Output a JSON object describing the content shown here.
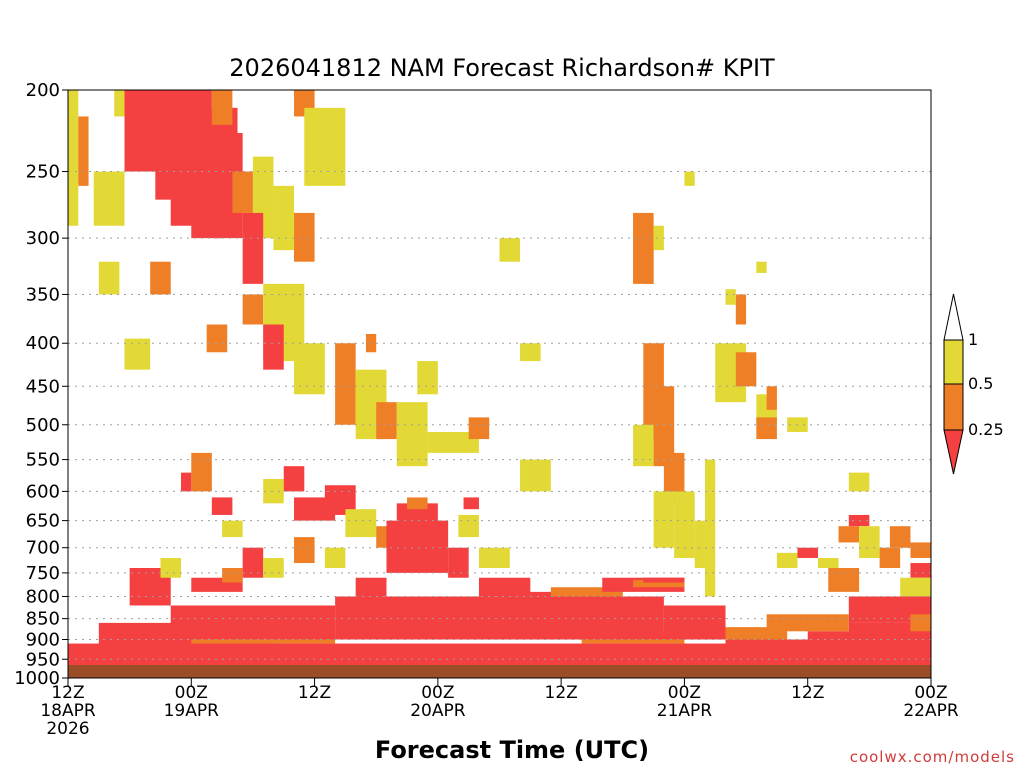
{
  "chart_data": {
    "type": "heatmap",
    "title": "2026041812 NAM Forecast Richardson# KPIT",
    "xlabel": "Forecast Time (UTC)",
    "ylabel": "",
    "y_axis": {
      "scale": "log",
      "inverted": true,
      "range": [
        200,
        1000
      ]
    },
    "y_ticks": [
      200,
      250,
      300,
      350,
      400,
      450,
      500,
      550,
      600,
      650,
      700,
      750,
      800,
      850,
      900,
      950,
      1000
    ],
    "x_axis": {
      "range_hours": [
        0,
        84
      ]
    },
    "x_ticks": [
      {
        "hour": 0,
        "lines": [
          "12Z",
          "18APR",
          "2026"
        ]
      },
      {
        "hour": 12,
        "lines": [
          "00Z",
          "19APR"
        ]
      },
      {
        "hour": 24,
        "lines": [
          "12Z"
        ]
      },
      {
        "hour": 36,
        "lines": [
          "00Z",
          "20APR"
        ]
      },
      {
        "hour": 48,
        "lines": [
          "12Z"
        ]
      },
      {
        "hour": 60,
        "lines": [
          "00Z",
          "21APR"
        ]
      },
      {
        "hour": 72,
        "lines": [
          "12Z"
        ]
      },
      {
        "hour": 84,
        "lines": [
          "00Z",
          "22APR"
        ]
      }
    ],
    "grid": "horizontal dotted",
    "colorbar": {
      "placement": "right",
      "labels": [
        "1",
        "0.5",
        "0.25"
      ],
      "levels": [
        {
          "range": "< 0.25",
          "color": "#f44040"
        },
        {
          "range": "0.25 - 0.5",
          "color": "#ef7f27"
        },
        {
          "range": "0.5 - 1",
          "color": "#e2d936"
        },
        {
          "range": "> 1",
          "color": "#ffffff"
        }
      ]
    },
    "ground_color": "#9b4d28",
    "ground_level_hpa": 965,
    "cells": [
      {
        "x": [
          0,
          1
        ],
        "p": [
          200,
          290
        ],
        "c": "#e2d936"
      },
      {
        "x": [
          1,
          2
        ],
        "p": [
          215,
          260
        ],
        "c": "#ef7f27"
      },
      {
        "x": [
          2.5,
          5.5
        ],
        "p": [
          250,
          290
        ],
        "c": "#e2d936"
      },
      {
        "x": [
          4.5,
          5.5
        ],
        "p": [
          200,
          215
        ],
        "c": "#e2d936"
      },
      {
        "x": [
          5.5,
          10
        ],
        "p": [
          200,
          250
        ],
        "c": "#f44040"
      },
      {
        "x": [
          7,
          12
        ],
        "p": [
          200,
          240
        ],
        "c": "#f44040"
      },
      {
        "x": [
          8.5,
          16.5
        ],
        "p": [
          210,
          270
        ],
        "c": "#f44040"
      },
      {
        "x": [
          10,
          14
        ],
        "p": [
          200,
          290
        ],
        "c": "#f44040"
      },
      {
        "x": [
          12,
          17
        ],
        "p": [
          225,
          300
        ],
        "c": "#f44040"
      },
      {
        "x": [
          14,
          15
        ],
        "p": [
          260,
          300
        ],
        "c": "#f44040"
      },
      {
        "x": [
          14,
          16
        ],
        "p": [
          200,
          220
        ],
        "c": "#ef7f27"
      },
      {
        "x": [
          16,
          18
        ],
        "p": [
          250,
          280
        ],
        "c": "#ef7f27"
      },
      {
        "x": [
          18,
          20
        ],
        "p": [
          240,
          300
        ],
        "c": "#e2d936"
      },
      {
        "x": [
          17,
          19
        ],
        "p": [
          280,
          340
        ],
        "c": "#f44040"
      },
      {
        "x": [
          20,
          22
        ],
        "p": [
          260,
          310
        ],
        "c": "#e2d936"
      },
      {
        "x": [
          22,
          24
        ],
        "p": [
          200,
          215
        ],
        "c": "#ef7f27"
      },
      {
        "x": [
          23,
          27
        ],
        "p": [
          210,
          260
        ],
        "c": "#e2d936"
      },
      {
        "x": [
          22,
          24
        ],
        "p": [
          280,
          320
        ],
        "c": "#ef7f27"
      },
      {
        "x": [
          3,
          5
        ],
        "p": [
          320,
          350
        ],
        "c": "#e2d936"
      },
      {
        "x": [
          8,
          10
        ],
        "p": [
          320,
          350
        ],
        "c": "#ef7f27"
      },
      {
        "x": [
          5.5,
          8
        ],
        "p": [
          395,
          430
        ],
        "c": "#e2d936"
      },
      {
        "x": [
          13.5,
          15.5
        ],
        "p": [
          380,
          410
        ],
        "c": "#ef7f27"
      },
      {
        "x": [
          17,
          19
        ],
        "p": [
          350,
          380
        ],
        "c": "#ef7f27"
      },
      {
        "x": [
          19,
          23
        ],
        "p": [
          340,
          420
        ],
        "c": "#e2d936"
      },
      {
        "x": [
          19,
          21
        ],
        "p": [
          380,
          430
        ],
        "c": "#f44040"
      },
      {
        "x": [
          22,
          25
        ],
        "p": [
          400,
          460
        ],
        "c": "#e2d936"
      },
      {
        "x": [
          26,
          28
        ],
        "p": [
          400,
          500
        ],
        "c": "#ef7f27"
      },
      {
        "x": [
          28,
          31
        ],
        "p": [
          430,
          520
        ],
        "c": "#e2d936"
      },
      {
        "x": [
          29,
          30
        ],
        "p": [
          390,
          410
        ],
        "c": "#ef7f27"
      },
      {
        "x": [
          30,
          32
        ],
        "p": [
          470,
          520
        ],
        "c": "#ef7f27"
      },
      {
        "x": [
          32,
          35
        ],
        "p": [
          470,
          560
        ],
        "c": "#e2d936"
      },
      {
        "x": [
          34,
          36
        ],
        "p": [
          420,
          460
        ],
        "c": "#e2d936"
      },
      {
        "x": [
          35,
          40
        ],
        "p": [
          510,
          540
        ],
        "c": "#e2d936"
      },
      {
        "x": [
          39,
          41
        ],
        "p": [
          490,
          520
        ],
        "c": "#ef7f27"
      },
      {
        "x": [
          42,
          44
        ],
        "p": [
          300,
          320
        ],
        "c": "#e2d936"
      },
      {
        "x": [
          44,
          46
        ],
        "p": [
          400,
          420
        ],
        "c": "#e2d936"
      },
      {
        "x": [
          44,
          47
        ],
        "p": [
          550,
          600
        ],
        "c": "#e2d936"
      },
      {
        "x": [
          12,
          14
        ],
        "p": [
          540,
          600
        ],
        "c": "#ef7f27"
      },
      {
        "x": [
          11,
          12
        ],
        "p": [
          570,
          600
        ],
        "c": "#f44040"
      },
      {
        "x": [
          14,
          16
        ],
        "p": [
          610,
          640
        ],
        "c": "#f44040"
      },
      {
        "x": [
          15,
          17
        ],
        "p": [
          650,
          680
        ],
        "c": "#e2d936"
      },
      {
        "x": [
          19,
          21
        ],
        "p": [
          580,
          620
        ],
        "c": "#e2d936"
      },
      {
        "x": [
          21,
          23
        ],
        "p": [
          560,
          600
        ],
        "c": "#f44040"
      },
      {
        "x": [
          22,
          26
        ],
        "p": [
          610,
          650
        ],
        "c": "#f44040"
      },
      {
        "x": [
          25,
          28
        ],
        "p": [
          590,
          640
        ],
        "c": "#f44040"
      },
      {
        "x": [
          27,
          30
        ],
        "p": [
          630,
          680
        ],
        "c": "#e2d936"
      },
      {
        "x": [
          30,
          32
        ],
        "p": [
          660,
          700
        ],
        "c": "#ef7f27"
      },
      {
        "x": [
          31,
          37
        ],
        "p": [
          650,
          750
        ],
        "c": "#f44040"
      },
      {
        "x": [
          32,
          36
        ],
        "p": [
          620,
          660
        ],
        "c": "#f44040"
      },
      {
        "x": [
          33,
          35
        ],
        "p": [
          610,
          630
        ],
        "c": "#ef7f27"
      },
      {
        "x": [
          37,
          39
        ],
        "p": [
          700,
          760
        ],
        "c": "#f44040"
      },
      {
        "x": [
          38,
          40
        ],
        "p": [
          640,
          680
        ],
        "c": "#e2d936"
      },
      {
        "x": [
          38.5,
          40
        ],
        "p": [
          610,
          630
        ],
        "c": "#f44040"
      },
      {
        "x": [
          40,
          43
        ],
        "p": [
          700,
          740
        ],
        "c": "#e2d936"
      },
      {
        "x": [
          6,
          10
        ],
        "p": [
          740,
          820
        ],
        "c": "#f44040"
      },
      {
        "x": [
          9,
          11
        ],
        "p": [
          720,
          760
        ],
        "c": "#e2d936"
      },
      {
        "x": [
          12,
          17
        ],
        "p": [
          760,
          790
        ],
        "c": "#f44040"
      },
      {
        "x": [
          15,
          17
        ],
        "p": [
          740,
          770
        ],
        "c": "#ef7f27"
      },
      {
        "x": [
          17,
          19
        ],
        "p": [
          700,
          760
        ],
        "c": "#f44040"
      },
      {
        "x": [
          19,
          21
        ],
        "p": [
          720,
          760
        ],
        "c": "#e2d936"
      },
      {
        "x": [
          22,
          24
        ],
        "p": [
          680,
          730
        ],
        "c": "#ef7f27"
      },
      {
        "x": [
          25,
          27
        ],
        "p": [
          700,
          740
        ],
        "c": "#e2d936"
      },
      {
        "x": [
          28,
          31
        ],
        "p": [
          760,
          800
        ],
        "c": "#f44040"
      },
      {
        "x": [
          40,
          45
        ],
        "p": [
          760,
          800
        ],
        "c": "#f44040"
      },
      {
        "x": [
          44,
          48
        ],
        "p": [
          790,
          830
        ],
        "c": "#f44040"
      },
      {
        "x": [
          47,
          54
        ],
        "p": [
          780,
          820
        ],
        "c": "#ef7f27"
      },
      {
        "x": [
          52,
          60
        ],
        "p": [
          760,
          790
        ],
        "c": "#f44040"
      },
      {
        "x": [
          55,
          60
        ],
        "p": [
          765,
          780
        ],
        "c": "#ef7f27"
      },
      {
        "x": [
          56,
          60
        ],
        "p": [
          760,
          770
        ],
        "c": "#f44040"
      },
      {
        "x": [
          62,
          63
        ],
        "p": [
          550,
          800
        ],
        "c": "#e2d936"
      },
      {
        "x": [
          55,
          57
        ],
        "p": [
          280,
          340
        ],
        "c": "#ef7f27"
      },
      {
        "x": [
          56,
          57
        ],
        "p": [
          300,
          340
        ],
        "c": "#ef7f27"
      },
      {
        "x": [
          57,
          58
        ],
        "p": [
          290,
          310
        ],
        "c": "#e2d936"
      },
      {
        "x": [
          56,
          58
        ],
        "p": [
          400,
          520
        ],
        "c": "#ef7f27"
      },
      {
        "x": [
          55,
          57
        ],
        "p": [
          500,
          560
        ],
        "c": "#e2d936"
      },
      {
        "x": [
          57,
          59
        ],
        "p": [
          450,
          560
        ],
        "c": "#ef7f27"
      },
      {
        "x": [
          58,
          60
        ],
        "p": [
          540,
          620
        ],
        "c": "#ef7f27"
      },
      {
        "x": [
          57,
          59
        ],
        "p": [
          600,
          700
        ],
        "c": "#e2d936"
      },
      {
        "x": [
          59,
          61
        ],
        "p": [
          600,
          720
        ],
        "c": "#e2d936"
      },
      {
        "x": [
          61,
          62
        ],
        "p": [
          650,
          740
        ],
        "c": "#e2d936"
      },
      {
        "x": [
          60,
          61
        ],
        "p": [
          250,
          260
        ],
        "c": "#e2d936"
      },
      {
        "x": [
          63,
          66
        ],
        "p": [
          400,
          470
        ],
        "c": "#e2d936"
      },
      {
        "x": [
          65,
          67
        ],
        "p": [
          410,
          450
        ],
        "c": "#ef7f27"
      },
      {
        "x": [
          67,
          69
        ],
        "p": [
          460,
          500
        ],
        "c": "#e2d936"
      },
      {
        "x": [
          67,
          69
        ],
        "p": [
          490,
          520
        ],
        "c": "#ef7f27"
      },
      {
        "x": [
          68,
          69
        ],
        "p": [
          450,
          480
        ],
        "c": "#ef7f27"
      },
      {
        "x": [
          70,
          72
        ],
        "p": [
          490,
          510
        ],
        "c": "#e2d936"
      },
      {
        "x": [
          65,
          66
        ],
        "p": [
          350,
          380
        ],
        "c": "#ef7f27"
      },
      {
        "x": [
          64,
          65
        ],
        "p": [
          345,
          360
        ],
        "c": "#e2d936"
      },
      {
        "x": [
          67,
          68
        ],
        "p": [
          320,
          330
        ],
        "c": "#e2d936"
      },
      {
        "x": [
          69,
          71
        ],
        "p": [
          710,
          740
        ],
        "c": "#e2d936"
      },
      {
        "x": [
          71,
          73
        ],
        "p": [
          700,
          720
        ],
        "c": "#f44040"
      },
      {
        "x": [
          73,
          75
        ],
        "p": [
          720,
          740
        ],
        "c": "#e2d936"
      },
      {
        "x": [
          74,
          77
        ],
        "p": [
          740,
          790
        ],
        "c": "#ef7f27"
      },
      {
        "x": [
          75,
          77
        ],
        "p": [
          660,
          690
        ],
        "c": "#ef7f27"
      },
      {
        "x": [
          76,
          78
        ],
        "p": [
          640,
          660
        ],
        "c": "#f44040"
      },
      {
        "x": [
          76,
          78
        ],
        "p": [
          570,
          600
        ],
        "c": "#e2d936"
      },
      {
        "x": [
          77,
          79
        ],
        "p": [
          660,
          720
        ],
        "c": "#e2d936"
      },
      {
        "x": [
          79,
          81
        ],
        "p": [
          700,
          740
        ],
        "c": "#ef7f27"
      },
      {
        "x": [
          80,
          82
        ],
        "p": [
          660,
          700
        ],
        "c": "#ef7f27"
      },
      {
        "x": [
          82,
          84
        ],
        "p": [
          690,
          720
        ],
        "c": "#ef7f27"
      },
      {
        "x": [
          82,
          84
        ],
        "p": [
          730,
          760
        ],
        "c": "#f44040"
      },
      {
        "x": [
          81,
          84
        ],
        "p": [
          760,
          800
        ],
        "c": "#e2d936"
      },
      {
        "x": [
          76,
          84
        ],
        "p": [
          800,
          860
        ],
        "c": "#f44040"
      },
      {
        "x": [
          76,
          84
        ],
        "p": [
          860,
          940
        ],
        "c": "#f44040"
      },
      {
        "x": [
          82,
          84
        ],
        "p": [
          840,
          880
        ],
        "c": "#ef7f27"
      },
      {
        "x": [
          9,
          20
        ],
        "p": [
          900,
          930
        ],
        "c": "#ef7f27"
      },
      {
        "x": [
          20,
          26
        ],
        "p": [
          880,
          910
        ],
        "c": "#ef7f27"
      },
      {
        "x": [
          50,
          60
        ],
        "p": [
          880,
          910
        ],
        "c": "#ef7f27"
      },
      {
        "x": [
          64,
          70
        ],
        "p": [
          870,
          910
        ],
        "c": "#ef7f27"
      },
      {
        "x": [
          68,
          76
        ],
        "p": [
          840,
          880
        ],
        "c": "#ef7f27"
      },
      {
        "x": [
          70,
          76
        ],
        "p": [
          900,
          940
        ],
        "c": "#ef7f27"
      },
      {
        "x": [
          60,
          68
        ],
        "p": [
          930,
          955
        ],
        "c": "#e2d936"
      },
      {
        "x": [
          0,
          84
        ],
        "p": [
          910,
          965
        ],
        "c": "#f44040"
      },
      {
        "x": [
          26,
          58
        ],
        "p": [
          800,
          900
        ],
        "c": "#f44040"
      },
      {
        "x": [
          10,
          26
        ],
        "p": [
          820,
          900
        ],
        "c": "#f44040"
      },
      {
        "x": [
          3,
          12
        ],
        "p": [
          860,
          920
        ],
        "c": "#f44040"
      },
      {
        "x": [
          58,
          64
        ],
        "p": [
          820,
          900
        ],
        "c": "#f44040"
      },
      {
        "x": [
          64,
          72
        ],
        "p": [
          900,
          930
        ],
        "c": "#f44040"
      },
      {
        "x": [
          72,
          80
        ],
        "p": [
          880,
          920
        ],
        "c": "#f44040"
      }
    ]
  },
  "credit": "coolwx.com/models"
}
